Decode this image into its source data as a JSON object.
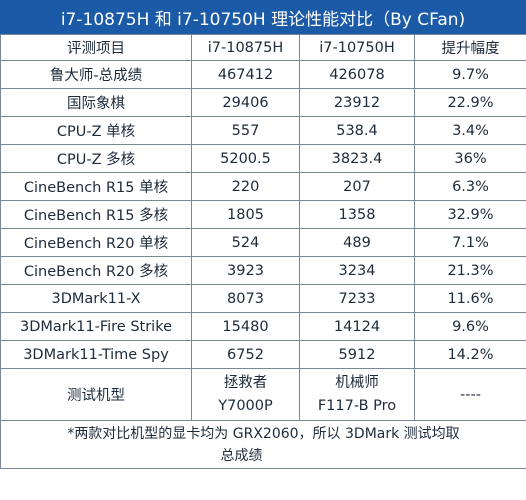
{
  "title": "i7-10875H 和 i7-10750H 理论性能对比（By CFan)",
  "columns": [
    "评测项目",
    "i7-10875H",
    "i7-10750H",
    "提升幅度"
  ],
  "rows": [
    {
      "item": "鲁大师-总成绩",
      "a": "467412",
      "b": "426078",
      "gain": "9.7%"
    },
    {
      "item": "国际象棋",
      "a": "29406",
      "b": "23912",
      "gain": "22.9%"
    },
    {
      "item": "CPU-Z 单核",
      "a": "557",
      "b": "538.4",
      "gain": "3.4%"
    },
    {
      "item": "CPU-Z 多核",
      "a": "5200.5",
      "b": "3823.4",
      "gain": "36%"
    },
    {
      "item": "CineBench R15 单核",
      "a": "220",
      "b": "207",
      "gain": "6.3%"
    },
    {
      "item": "CineBench R15 多核",
      "a": "1805",
      "b": "1358",
      "gain": "32.9%"
    },
    {
      "item": "CineBench R20 单核",
      "a": "524",
      "b": "489",
      "gain": "7.1%"
    },
    {
      "item": "CineBench R20 多核",
      "a": "3923",
      "b": "3234",
      "gain": "21.3%"
    },
    {
      "item": "3DMark11-X",
      "a": "8073",
      "b": "7233",
      "gain": "11.6%"
    },
    {
      "item": "3DMark11-Fire Strike",
      "a": "15480",
      "b": "14124",
      "gain": "9.6%"
    },
    {
      "item": "3DMark11-Time Spy",
      "a": "6752",
      "b": "5912",
      "gain": "14.2%"
    }
  ],
  "test_model": {
    "label": "测试机型",
    "a_line1": "拯救者",
    "a_line2": "Y7000P",
    "b_line1": "机械师",
    "b_line2": "F117-B Pro",
    "gain": "----"
  },
  "footnote": {
    "line1": "*两款对比机型的显卡均为 GRX2060，所以 3DMark 测试均取",
    "line2": "总成绩"
  }
}
